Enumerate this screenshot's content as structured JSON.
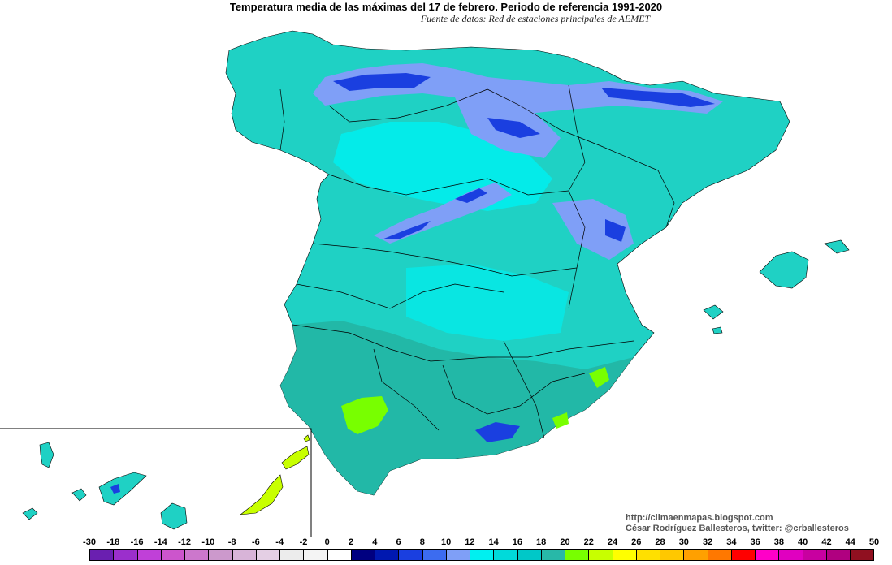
{
  "title": "Temperatura media de las máximas del 17 de febrero. Periodo de referencia 1991-2020",
  "subtitle": "Fuente de datos: Red de estaciones principales de AEMET",
  "credit": {
    "blog": "http://climaenmapas.blogspot.com",
    "author": "César Rodríguez Ballesteros, twitter: @crballesteros"
  },
  "legend": {
    "ticks": [
      "-30",
      "-18",
      "-16",
      "-14",
      "-12",
      "-10",
      "-8",
      "-6",
      "-4",
      "-2",
      "0",
      "2",
      "4",
      "6",
      "8",
      "10",
      "12",
      "14",
      "16",
      "18",
      "20",
      "22",
      "24",
      "26",
      "28",
      "30",
      "32",
      "34",
      "36",
      "38",
      "40",
      "42",
      "44",
      "50"
    ],
    "colors": [
      "#6a1fb0",
      "#9b2fcc",
      "#c040d8",
      "#cc55cc",
      "#cc77cc",
      "#cc99cc",
      "#d8b4d8",
      "#e4cfe4",
      "#ececec",
      "#f4f4f4",
      "#ffffff",
      "#000080",
      "#0018b0",
      "#1a3fe0",
      "#3c6cf0",
      "#7f9ff7",
      "#00f0f0",
      "#00dada",
      "#00c8c8",
      "#28b8a8",
      "#78ff00",
      "#c8ff00",
      "#ffff00",
      "#ffe000",
      "#ffc800",
      "#ffa000",
      "#ff7800",
      "#ff0000",
      "#ff00c8",
      "#e000c0",
      "#c800a0",
      "#b00080",
      "#901020"
    ]
  },
  "map_colors": {
    "land_base": "#1fd1c4",
    "land_warm": "#22b5a4",
    "land_cool": "#00f0f0",
    "mountain": "#7f9ff7",
    "high_mountain": "#1a3fe0",
    "peak": "#000080",
    "warm_valley": "#78ff00",
    "border": "#000000"
  }
}
